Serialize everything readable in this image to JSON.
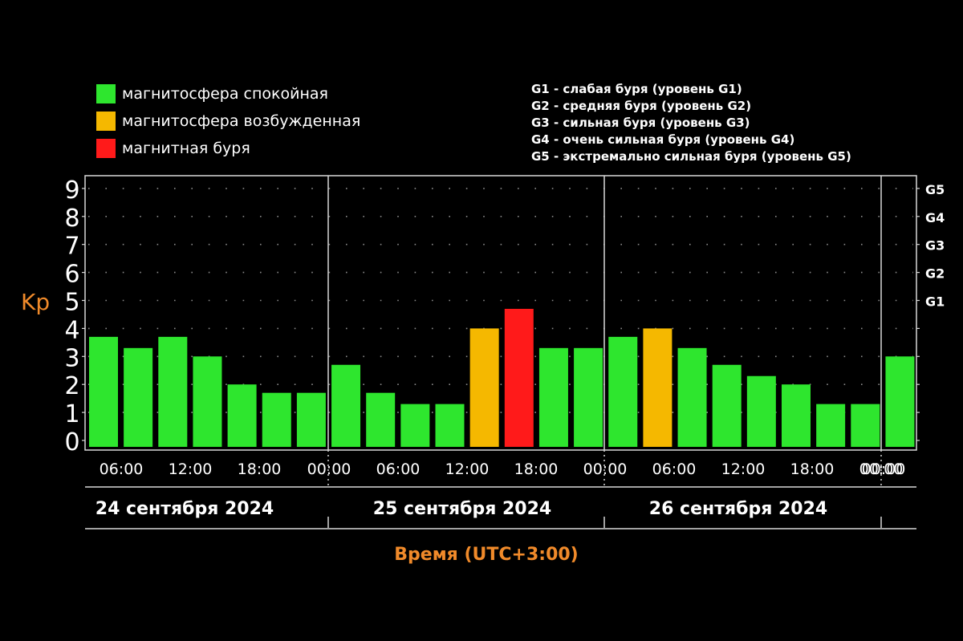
{
  "legend": [
    {
      "label": "магнитосфера спокойная",
      "color": "#2ee62e"
    },
    {
      "label": "магнитосфера возбужденная",
      "color": "#f5b800"
    },
    {
      "label": "магнитная буря",
      "color": "#ff1a1a"
    }
  ],
  "g_scale": [
    "G1 - слабая буря (уровень G1)",
    "G2 - средняя буря (уровень G2)",
    "G3 - сильная буря (уровень G3)",
    "G4 - очень сильная буря (уровень G4)",
    "G5 - экстремально сильная буря (уровень G5)"
  ],
  "chart_data": {
    "type": "bar",
    "ylabel": "Kp",
    "xlabel": "Время (UTC+3:00)",
    "ylim": [
      0,
      9
    ],
    "y_ticks": [
      0,
      1,
      2,
      3,
      4,
      5,
      6,
      7,
      8,
      9
    ],
    "g_ticks": [
      {
        "label": "G1",
        "value": 5
      },
      {
        "label": "G2",
        "value": 6
      },
      {
        "label": "G3",
        "value": 7
      },
      {
        "label": "G4",
        "value": 8
      },
      {
        "label": "G5",
        "value": 9
      }
    ],
    "days": [
      "24 сентября 2024",
      "25 сентября 2024",
      "26 сентября 2024"
    ],
    "time_ticks": [
      "06:00",
      "12:00",
      "18:00",
      "00:00",
      "06:00",
      "12:00",
      "18:00",
      "00:00",
      "06:00",
      "12:00",
      "18:00",
      "00:00",
      "00:00"
    ],
    "bar_colors": {
      "quiet": "#2ee62e",
      "active": "#f5b800",
      "storm": "#ff1a1a"
    },
    "values": [
      3.7,
      3.3,
      3.7,
      3.0,
      2.0,
      1.7,
      1.7,
      2.7,
      1.7,
      1.3,
      1.3,
      4.0,
      4.7,
      3.3,
      3.3,
      3.7,
      4.0,
      3.3,
      2.7,
      2.3,
      2.0,
      1.3,
      1.3,
      3.0
    ],
    "levels": [
      "quiet",
      "quiet",
      "quiet",
      "quiet",
      "quiet",
      "quiet",
      "quiet",
      "quiet",
      "quiet",
      "quiet",
      "quiet",
      "active",
      "storm",
      "quiet",
      "quiet",
      "quiet",
      "active",
      "quiet",
      "quiet",
      "quiet",
      "quiet",
      "quiet",
      "quiet",
      "quiet"
    ],
    "grid": true
  }
}
